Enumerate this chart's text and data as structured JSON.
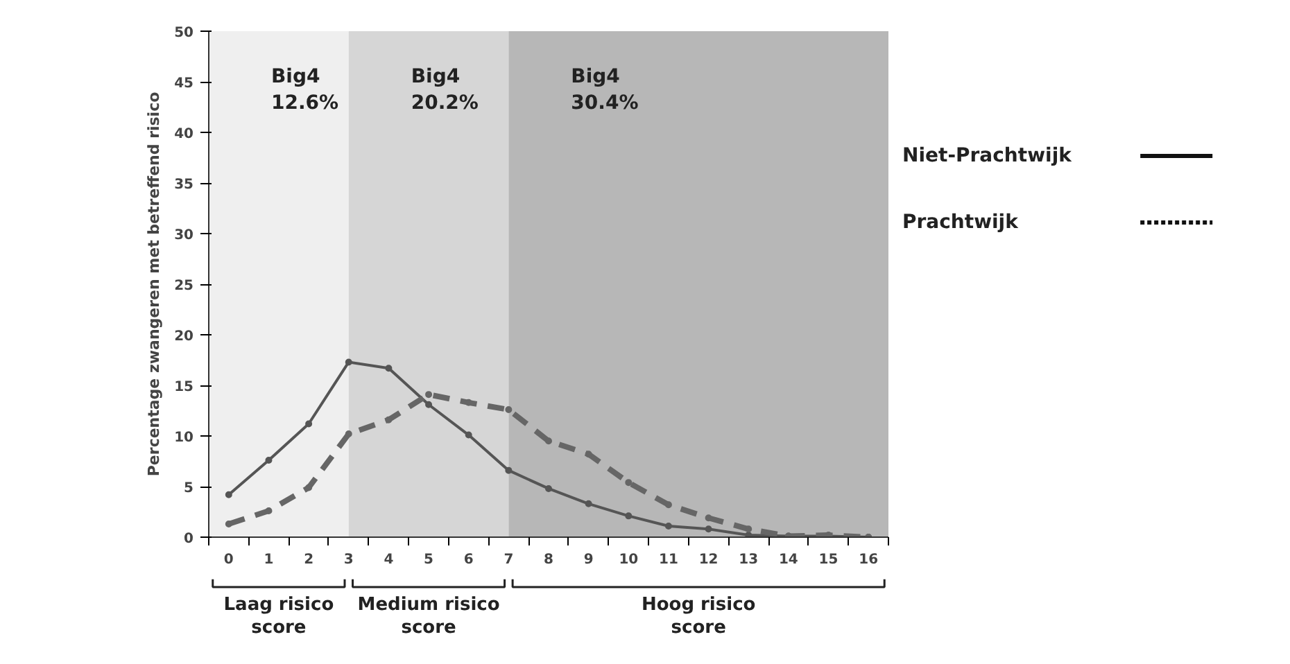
{
  "chart_data": {
    "type": "line",
    "ylabel": "Percentage zwangeren met betreffend risico",
    "x": [
      0,
      1,
      2,
      3,
      4,
      5,
      6,
      7,
      8,
      9,
      10,
      11,
      12,
      13,
      14,
      15,
      16
    ],
    "xlim": [
      -0.5,
      16.5
    ],
    "xticks": [
      0,
      1,
      2,
      3,
      4,
      5,
      6,
      7,
      8,
      9,
      10,
      11,
      12,
      13,
      14,
      15,
      16
    ],
    "ylim": [
      0,
      50
    ],
    "yticks": [
      0,
      5,
      10,
      15,
      20,
      25,
      30,
      35,
      40,
      45,
      50
    ],
    "grid": false,
    "legend": "right",
    "marker": "circle",
    "series": [
      {
        "name": "Niet-Prachtwijk",
        "color": "#555555",
        "line_style": "solid",
        "values": [
          4.2,
          7.6,
          11.2,
          17.3,
          16.7,
          13.1,
          10.1,
          6.6,
          4.8,
          3.3,
          2.1,
          1.1,
          0.8,
          0.2,
          0.1,
          0.1,
          0
        ]
      },
      {
        "name": "Prachtwijk",
        "color": "#666666",
        "line_style": "dashed",
        "values": [
          1.3,
          2.6,
          4.9,
          10.2,
          11.6,
          14.1,
          13.3,
          12.6,
          9.5,
          8.2,
          5.4,
          3.2,
          1.9,
          0.8,
          0.1,
          0.2,
          0
        ]
      }
    ],
    "bands": [
      {
        "axis": "x",
        "from": -0.5,
        "to": 3,
        "label": "Big4\n12.6%",
        "color": "#efefef"
      },
      {
        "axis": "x",
        "from": 3,
        "to": 7,
        "label": "Big4\n20.2%",
        "color": "#d6d6d6"
      },
      {
        "axis": "x",
        "from": 7,
        "to": 16.5,
        "label": "Big4\n30.4%",
        "color": "#b7b7b7"
      }
    ],
    "annotations": [
      "Laag risico\nscore",
      "Medium risico\nscore",
      "Hoog risico\nscore"
    ]
  }
}
